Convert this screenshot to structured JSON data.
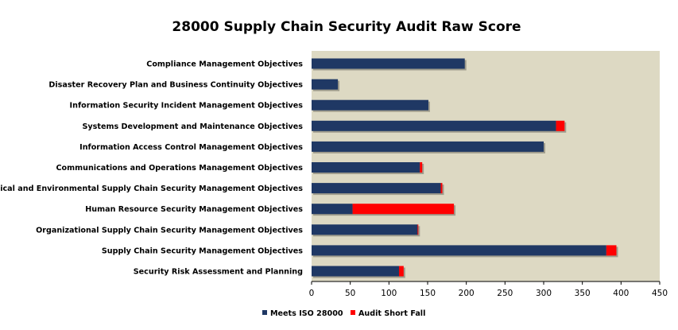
{
  "chart_data": {
    "type": "bar",
    "orientation": "horizontal",
    "stacked": true,
    "title": "28000 Supply Chain Security Audit Raw Score",
    "xlabel": "",
    "ylabel": "",
    "xlim": [
      0,
      450
    ],
    "xticks": [
      0,
      50,
      100,
      150,
      200,
      250,
      300,
      350,
      400,
      450
    ],
    "grid": false,
    "legend_position": "bottom",
    "categories": [
      "Compliance Management Objectives",
      "Disaster Recovery Plan and Business Continuity Objectives",
      "Information Security Incident Management Objectives",
      "Systems Development and Maintenance Objectives",
      "Information Access Control Management Objectives",
      "Communications and Operations Management Objectives",
      "Physical and Environmental Supply Chain Security Management Objectives",
      "Human Resource Security Management Objectives",
      "Organizational Supply Chain Security  Management Objectives",
      "Supply Chain Security Management Objectives",
      "Security Risk Assessment and Planning"
    ],
    "series": [
      {
        "name": "Meets ISO 28000",
        "color": "#1f3864",
        "values": [
          198,
          34,
          151,
          316,
          300,
          140,
          167,
          53,
          137,
          381,
          113
        ]
      },
      {
        "name": "Audit Short Fall",
        "color": "#ff0000",
        "values": [
          0,
          0,
          0,
          11,
          0,
          3,
          2,
          131,
          1,
          13,
          6
        ]
      }
    ],
    "plot_background": "#ddd9c3"
  }
}
